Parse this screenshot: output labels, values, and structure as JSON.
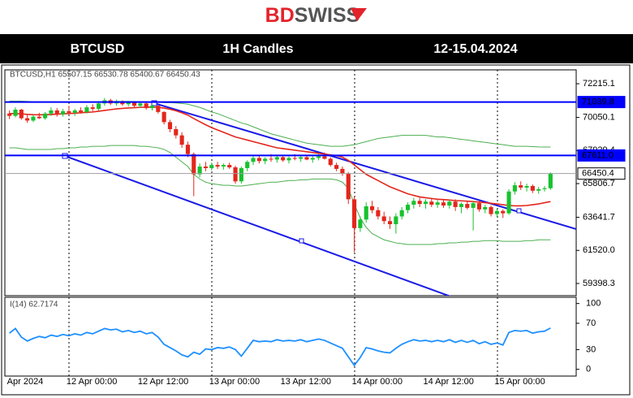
{
  "header": {
    "logo_bd": "BD",
    "logo_swiss": "SWISS",
    "symbol": "BTCUSD",
    "timeframe": "1H Candles",
    "dates": "12-15.04.2024"
  },
  "chart_data": [
    {
      "type": "candlestick",
      "info": "BTCUSD,H1 65507.15 66530.78 65400.67 66450.43",
      "categories": [
        "Apr 2024",
        null,
        null,
        null,
        null,
        null,
        null,
        null,
        null,
        null,
        "12 Apr 00:00",
        null,
        null,
        null,
        null,
        null,
        null,
        null,
        null,
        null,
        null,
        null,
        "12 Apr 12:00",
        null,
        null,
        null,
        null,
        null,
        null,
        null,
        null,
        null,
        null,
        null,
        "13 Apr 00:00",
        null,
        null,
        null,
        null,
        null,
        null,
        null,
        null,
        null,
        null,
        null,
        "13 Apr 12:00",
        null,
        null,
        null,
        null,
        null,
        null,
        null,
        null,
        null,
        null,
        null,
        "14 Apr 00:00",
        null,
        null,
        null,
        null,
        null,
        null,
        null,
        null,
        null,
        null,
        null,
        "14 Apr 12:00",
        null,
        null,
        null,
        null,
        null,
        null,
        null,
        null,
        null,
        null,
        null,
        "15 Apr 00:00",
        null,
        null,
        null,
        null,
        null,
        null,
        null,
        null,
        null
      ],
      "open": [
        70300,
        70150,
        70550,
        70000,
        69850,
        70100,
        70000,
        70300,
        70500,
        70250,
        70450,
        70350,
        70500,
        70400,
        70700,
        70600,
        70950,
        71150,
        70950,
        71050,
        70900,
        71000,
        70800,
        70950,
        70650,
        70800,
        70400,
        69750,
        69300,
        68900,
        68300,
        67700,
        66400,
        66900,
        66800,
        67000,
        66900,
        67000,
        66850,
        65950,
        66800,
        67200,
        67450,
        67250,
        67400,
        67350,
        67500,
        67300,
        67450,
        67400,
        67500,
        67350,
        67450,
        67550,
        67400,
        67000,
        66750,
        66450,
        64800,
        62950,
        63500,
        64350,
        64100,
        63700,
        63400,
        63200,
        63700,
        64100,
        64450,
        64700,
        64500,
        64650,
        64450,
        64600,
        64400,
        64650,
        64300,
        64500,
        64250,
        64550,
        64150,
        64300,
        63850,
        64050,
        63900,
        65300,
        65700,
        65550,
        65650,
        65350,
        65450,
        65507.15
      ],
      "high": [
        70500,
        70700,
        70600,
        70250,
        70200,
        70350,
        70400,
        70700,
        70650,
        70600,
        70800,
        70600,
        70700,
        70850,
        70900,
        71100,
        71300,
        71250,
        71200,
        71150,
        71100,
        71050,
        71100,
        71050,
        70900,
        70850,
        70450,
        69900,
        69500,
        69100,
        68500,
        67800,
        67100,
        67200,
        67150,
        67200,
        67100,
        67150,
        66950,
        66900,
        67300,
        67600,
        67650,
        67500,
        67700,
        67600,
        67650,
        67550,
        67700,
        67600,
        67650,
        67550,
        67700,
        67800,
        67500,
        67150,
        66900,
        66550,
        65000,
        63700,
        64600,
        64700,
        64300,
        64000,
        63700,
        63900,
        64300,
        64600,
        64900,
        64900,
        64800,
        64850,
        64750,
        64800,
        64750,
        64800,
        64600,
        64700,
        64650,
        64700,
        64450,
        64400,
        64200,
        64150,
        65450,
        65900,
        65950,
        65800,
        65750,
        65600,
        65650,
        66530.78
      ],
      "low": [
        69950,
        70050,
        69900,
        69700,
        69750,
        69950,
        69900,
        70150,
        70100,
        70100,
        70300,
        70150,
        70300,
        70300,
        70450,
        70500,
        70800,
        70850,
        70800,
        70800,
        70750,
        70700,
        70650,
        70550,
        70500,
        70300,
        69600,
        69100,
        68700,
        68100,
        67500,
        65000,
        66200,
        66600,
        66650,
        66750,
        66700,
        66750,
        65800,
        65800,
        66600,
        67000,
        67100,
        67050,
        67200,
        67150,
        67200,
        67100,
        67300,
        67200,
        67300,
        67150,
        67300,
        67350,
        66900,
        66600,
        66300,
        64500,
        61400,
        62700,
        63300,
        63900,
        63500,
        63200,
        62900,
        62600,
        63500,
        63900,
        64200,
        64300,
        64200,
        64300,
        64250,
        64250,
        64200,
        64050,
        63900,
        64150,
        62800,
        64000,
        63900,
        63700,
        63650,
        63600,
        63800,
        65100,
        65400,
        65300,
        65200,
        65150,
        65300,
        65400.67
      ],
      "close": [
        70150,
        70550,
        70000,
        69850,
        70100,
        70000,
        70300,
        70500,
        70250,
        70450,
        70350,
        70500,
        70400,
        70700,
        70600,
        70950,
        71150,
        70950,
        71050,
        70900,
        71000,
        70800,
        70950,
        70650,
        70800,
        70400,
        69750,
        69300,
        68900,
        68300,
        67700,
        66400,
        66900,
        66800,
        67000,
        66900,
        67000,
        66850,
        65950,
        66800,
        67200,
        67450,
        67250,
        67400,
        67350,
        67500,
        67300,
        67450,
        67400,
        67500,
        67350,
        67450,
        67550,
        67400,
        67000,
        66750,
        66450,
        64800,
        62950,
        63500,
        64350,
        64100,
        63700,
        63400,
        63200,
        63700,
        64100,
        64450,
        64700,
        64500,
        64650,
        64450,
        64600,
        64400,
        64650,
        64300,
        64500,
        64250,
        64550,
        64150,
        64300,
        63850,
        64050,
        63900,
        65300,
        65700,
        65550,
        65650,
        65350,
        65450,
        65507.15,
        66450.43
      ],
      "up_color": "#17c22e",
      "down_color": "#e3261c",
      "series": [
        {
          "color": "#4caf50",
          "values": [
            71100,
            71100,
            71100,
            71080,
            71060,
            71050,
            71050,
            71050,
            71040,
            71040,
            71030,
            71030,
            71020,
            71020,
            71020,
            71030,
            71050,
            71070,
            71080,
            71080,
            71080,
            71070,
            71060,
            71050,
            71040,
            71030,
            71000,
            71000,
            70980,
            70950,
            70900,
            70800,
            70700,
            70550,
            70400,
            70300,
            70150,
            70000,
            69850,
            69700,
            69600,
            69450,
            69300,
            69150,
            69000,
            68900,
            68800,
            68700,
            68600,
            68500,
            68400,
            68350,
            68300,
            68250,
            68200,
            68200,
            68200,
            68250,
            68300,
            68400,
            68500,
            68600,
            68700,
            68750,
            68800,
            68850,
            68900,
            68900,
            68900,
            68900,
            68900,
            68850,
            68800,
            68800,
            68750,
            68700,
            68650,
            68600,
            68550,
            68500,
            68450,
            68400,
            68350,
            68300,
            68250,
            68200,
            68200,
            68200,
            68180,
            68160,
            68150,
            68150
          ]
        },
        {
          "color": "#4caf50",
          "values": [
            68100,
            68100,
            68050,
            68000,
            68000,
            68000,
            68000,
            68000,
            68050,
            68050,
            68100,
            68100,
            68150,
            68150,
            68200,
            68200,
            68200,
            68250,
            68250,
            68250,
            68250,
            68250,
            68200,
            68200,
            68150,
            68100,
            68000,
            67800,
            67500,
            67200,
            66900,
            66400,
            66100,
            65900,
            65800,
            65750,
            65700,
            65700,
            65650,
            65650,
            65700,
            65750,
            65800,
            65850,
            65900,
            65900,
            65950,
            66000,
            66000,
            66050,
            66050,
            66100,
            66100,
            66100,
            66100,
            66050,
            65900,
            65500,
            64500,
            63600,
            63000,
            62600,
            62400,
            62200,
            62100,
            62000,
            61950,
            61900,
            61900,
            61900,
            61900,
            61900,
            61950,
            61950,
            62000,
            62000,
            62050,
            62050,
            62100,
            62100,
            62150,
            62150,
            62150,
            62100,
            62100,
            62100,
            62100,
            62150,
            62150,
            62200,
            62200,
            62200
          ]
        },
        {
          "color": "#e3261c",
          "values": [
            70300,
            70300,
            70280,
            70250,
            70230,
            70220,
            70220,
            70240,
            70260,
            70280,
            70300,
            70320,
            70350,
            70380,
            70400,
            70450,
            70500,
            70550,
            70600,
            70630,
            70660,
            70680,
            70700,
            70710,
            70710,
            70700,
            70650,
            70580,
            70480,
            70350,
            70200,
            69980,
            69780,
            69580,
            69400,
            69250,
            69100,
            68950,
            68800,
            68700,
            68600,
            68500,
            68400,
            68300,
            68200,
            68100,
            68050,
            68000,
            67950,
            67900,
            67850,
            67800,
            67750,
            67700,
            67650,
            67600,
            67500,
            67300,
            67000,
            66700,
            66400,
            66200,
            66000,
            65800,
            65600,
            65450,
            65300,
            65150,
            65050,
            64950,
            64900,
            64850,
            64800,
            64780,
            64750,
            64720,
            64700,
            64680,
            64650,
            64620,
            64580,
            64540,
            64500,
            64450,
            64400,
            64380,
            64380,
            64400,
            64450,
            64500,
            64580,
            64650
          ]
        }
      ],
      "hlines": [
        {
          "value": 71039.8,
          "color": "#0000ff"
        },
        {
          "value": 67611.0,
          "label": "67611.0",
          "color": "#0000ff"
        },
        {
          "value": 66450.4,
          "color": "#a0a0a0"
        }
      ],
      "ylim": [
        58720,
        73000
      ],
      "yticks": [
        72215.1,
        70050.1,
        67929.4,
        65806.7,
        63641.7,
        {
          "value": 61520.0,
          "label": "61520.0"
        },
        59398.3
      ]
    },
    {
      "type": "line",
      "info": "I(14) 62.7174",
      "series": [
        {
          "color": "#1e90ff",
          "values": [
            55,
            62,
            49,
            43,
            47,
            50,
            48,
            52,
            50,
            53,
            51,
            54,
            52,
            56,
            54,
            58,
            62,
            60,
            61,
            57,
            59,
            56,
            58,
            54,
            56,
            49,
            38,
            33,
            28,
            22,
            19,
            26,
            23,
            31,
            30,
            33,
            32,
            34,
            30,
            20,
            32,
            44,
            42,
            43,
            42,
            45,
            43,
            44,
            43,
            45,
            42,
            44,
            46,
            44,
            40,
            36,
            32,
            19,
            6,
            18,
            33,
            31,
            28,
            26,
            25,
            32,
            38,
            42,
            45,
            43,
            44,
            42,
            44,
            42,
            45,
            41,
            44,
            41,
            44,
            39,
            42,
            38,
            40,
            37,
            56,
            59,
            58,
            59,
            55,
            57,
            58,
            62.7174
          ]
        }
      ],
      "ylim": [
        -9,
        107
      ],
      "yticks": [
        0,
        30,
        70,
        100
      ]
    }
  ]
}
